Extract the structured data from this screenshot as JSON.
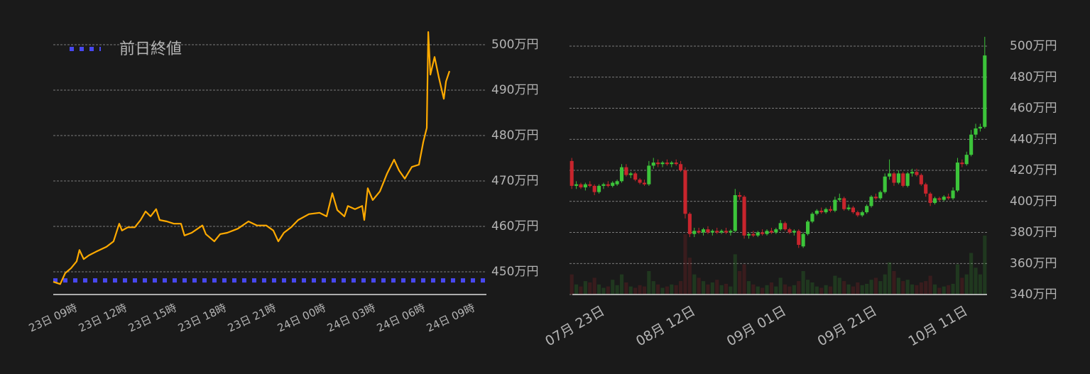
{
  "chart_data": [
    {
      "type": "line",
      "x": [
        -1.41,
        -0.99,
        -0.69,
        -0.34,
        0,
        0.17,
        0.43,
        0.73,
        1.16,
        1.8,
        2.23,
        2.57,
        2.74,
        3.09,
        3.51,
        3.86,
        4.16,
        4.46,
        4.8,
        5.01,
        5.44,
        5.87,
        6.3,
        6.51,
        6.94,
        7.59,
        7.8,
        8.31,
        8.66,
        9.09,
        9.73,
        10.37,
        10.89,
        11.44,
        11.87,
        12.17,
        12.51,
        12.94,
        13.37,
        14.02,
        14.66,
        15.09,
        15.43,
        15.73,
        16.16,
        16.37,
        16.8,
        17.23,
        17.36,
        17.57,
        17.87,
        18.3,
        18.73,
        19.16,
        19.46,
        19.8,
        20.23,
        20.66,
        20.92,
        21.13,
        21.22,
        21.35,
        21.6,
        21.86,
        22.16,
        22.29,
        22.5
      ],
      "values": [
        447.8,
        447.3,
        449.7,
        450.8,
        452.3,
        454.8,
        452.8,
        453.6,
        454.4,
        455.5,
        456.7,
        460.6,
        459.1,
        459.8,
        459.8,
        461.4,
        463.3,
        462.2,
        463.8,
        461.4,
        461.1,
        460.6,
        460.6,
        458,
        458.6,
        460.2,
        458.3,
        456.7,
        458.3,
        458.6,
        459.5,
        461.1,
        460.2,
        460.2,
        459.1,
        456.7,
        458.6,
        459.8,
        461.4,
        462.7,
        463,
        462.2,
        467.3,
        463.6,
        462.2,
        464.5,
        463.8,
        464.5,
        461.4,
        468.4,
        465.8,
        467.7,
        471.6,
        474.7,
        472.3,
        470.5,
        473.1,
        473.6,
        478.6,
        481.7,
        502.8,
        493.4,
        497.3,
        492.8,
        488.1,
        491.9,
        494.2
      ],
      "color": "#ffa a00",
      "reference_line": {
        "name": "前日終値",
        "value": 448.1,
        "color": "#4848f0"
      },
      "xlim": [
        -1.41,
        24.73
      ],
      "xticks": [
        {
          "value": 0,
          "label": "23日 09時"
        },
        {
          "value": 3,
          "label": "23日 12時"
        },
        {
          "value": 6,
          "label": "23日 15時"
        },
        {
          "value": 9,
          "label": "23日 18時"
        },
        {
          "value": 12,
          "label": "23日 21時"
        },
        {
          "value": 15,
          "label": "24日 00時"
        },
        {
          "value": 18,
          "label": "24日 03時"
        },
        {
          "value": 21,
          "label": "24日 06時"
        },
        {
          "value": 24,
          "label": "24日 09時"
        }
      ],
      "ylim": [
        445,
        503.5
      ],
      "yticks": [
        {
          "value": 450,
          "label": "450万円"
        },
        {
          "value": 460,
          "label": "460万円"
        },
        {
          "value": 470,
          "label": "470万円"
        },
        {
          "value": 480,
          "label": "480万円"
        },
        {
          "value": 490,
          "label": "490万円"
        },
        {
          "value": 500,
          "label": "500万円"
        }
      ],
      "grid": true
    },
    {
      "type": "candlestick",
      "categories": [
        null,
        null,
        null,
        null,
        null,
        null,
        null,
        "07月 23日",
        null,
        null,
        null,
        null,
        null,
        null,
        null,
        null,
        null,
        null,
        null,
        null,
        null,
        null,
        null,
        null,
        null,
        null,
        null,
        "08月 12日",
        null,
        null,
        null,
        null,
        null,
        null,
        null,
        null,
        null,
        null,
        null,
        null,
        null,
        null,
        null,
        null,
        null,
        null,
        null,
        "09月 01日",
        null,
        null,
        null,
        null,
        null,
        null,
        null,
        null,
        null,
        null,
        null,
        null,
        null,
        null,
        null,
        null,
        null,
        null,
        null,
        "09月 21日",
        null,
        null,
        null,
        null,
        null,
        null,
        null,
        null,
        null,
        null,
        null,
        null,
        null,
        null,
        null,
        null,
        null,
        null,
        null,
        "10月 11日",
        null,
        null,
        null,
        null
      ],
      "open": [
        426,
        410,
        411,
        409,
        411,
        410,
        406,
        410,
        411,
        410,
        411,
        413,
        422,
        417,
        418,
        414,
        412,
        411,
        423,
        425,
        424,
        425,
        424,
        425,
        424,
        420,
        392,
        379,
        381,
        380,
        382,
        380,
        381,
        380,
        381,
        380,
        381,
        404,
        403,
        378,
        379,
        378,
        380,
        379,
        381,
        380,
        382,
        386,
        382,
        380,
        381,
        371,
        379,
        387,
        392,
        394,
        393,
        395,
        394,
        401,
        402,
        395,
        396,
        393,
        391,
        393,
        397,
        403,
        402,
        406,
        416,
        418,
        412,
        418,
        410,
        418,
        419,
        417,
        411,
        405,
        399,
        402,
        401,
        403,
        402,
        407,
        425,
        424,
        430,
        443,
        447,
        448
      ],
      "high": [
        428,
        413,
        412,
        412,
        413,
        411,
        411,
        412,
        413,
        413,
        414,
        424,
        424,
        419,
        419,
        415,
        414,
        426,
        428,
        427,
        426,
        427,
        426,
        427,
        426,
        422,
        393,
        383,
        383,
        383,
        384,
        382,
        383,
        382,
        383,
        382,
        408,
        406,
        404,
        380,
        381,
        381,
        382,
        382,
        383,
        383,
        388,
        387,
        383,
        382,
        382,
        380,
        388,
        393,
        395,
        396,
        396,
        397,
        403,
        405,
        403,
        398,
        397,
        394,
        394,
        398,
        404,
        405,
        407,
        418,
        427,
        419,
        420,
        419,
        419,
        421,
        421,
        418,
        412,
        406,
        403,
        403,
        404,
        405,
        409,
        428,
        427,
        432,
        446,
        450,
        450,
        506
      ],
      "low": [
        408,
        408,
        408,
        407,
        409,
        404,
        405,
        408,
        409,
        409,
        410,
        412,
        416,
        415,
        413,
        411,
        410,
        410,
        421,
        422,
        422,
        423,
        422,
        423,
        419,
        389,
        377,
        377,
        379,
        378,
        379,
        378,
        379,
        379,
        379,
        378,
        380,
        401,
        376,
        376,
        377,
        377,
        378,
        378,
        379,
        379,
        381,
        381,
        379,
        378,
        370,
        370,
        378,
        386,
        391,
        392,
        392,
        393,
        393,
        400,
        394,
        394,
        392,
        390,
        390,
        392,
        396,
        401,
        401,
        405,
        414,
        410,
        411,
        409,
        409,
        416,
        416,
        410,
        403,
        397,
        398,
        400,
        400,
        401,
        401,
        406,
        422,
        423,
        429,
        441,
        445,
        447
      ],
      "close": [
        410,
        411,
        409,
        411,
        410,
        406,
        410,
        411,
        410,
        412,
        413,
        422,
        417,
        418,
        414,
        412,
        411,
        423,
        425,
        424,
        425,
        424,
        425,
        424,
        420,
        392,
        379,
        381,
        380,
        382,
        380,
        381,
        380,
        381,
        380,
        381,
        404,
        403,
        378,
        379,
        378,
        380,
        379,
        381,
        380,
        382,
        386,
        382,
        380,
        381,
        372,
        379,
        387,
        392,
        394,
        393,
        395,
        394,
        401,
        402,
        395,
        396,
        393,
        391,
        393,
        397,
        403,
        402,
        406,
        416,
        418,
        412,
        418,
        410,
        418,
        419,
        417,
        411,
        405,
        399,
        402,
        401,
        403,
        402,
        407,
        425,
        424,
        430,
        443,
        447,
        448,
        494
      ],
      "volume": [
        30,
        15,
        12,
        20,
        18,
        25,
        15,
        10,
        12,
        22,
        14,
        30,
        18,
        12,
        10,
        14,
        12,
        35,
        20,
        15,
        10,
        12,
        15,
        14,
        20,
        90,
        55,
        30,
        25,
        20,
        15,
        18,
        22,
        14,
        16,
        12,
        60,
        35,
        45,
        20,
        15,
        12,
        10,
        14,
        18,
        12,
        25,
        15,
        12,
        14,
        20,
        35,
        22,
        18,
        12,
        10,
        14,
        12,
        28,
        25,
        20,
        15,
        12,
        18,
        14,
        16,
        22,
        25,
        20,
        30,
        48,
        35,
        25,
        20,
        22,
        15,
        14,
        18,
        20,
        28,
        15,
        10,
        12,
        14,
        16,
        45,
        25,
        30,
        62,
        40,
        30,
        88
      ],
      "up_color": "#3cc43a",
      "down_color": "#c8252d",
      "ylim": [
        340,
        507
      ],
      "yticks": [
        {
          "value": 340,
          "label": "340万円"
        },
        {
          "value": 360,
          "label": "360万円"
        },
        {
          "value": 380,
          "label": "380万円"
        },
        {
          "value": 400,
          "label": "400万円"
        },
        {
          "value": 420,
          "label": "420万円"
        },
        {
          "value": 440,
          "label": "440万円"
        },
        {
          "value": 460,
          "label": "460万円"
        },
        {
          "value": 480,
          "label": "480万円"
        },
        {
          "value": 500,
          "label": "500万円"
        }
      ],
      "grid": true
    }
  ]
}
